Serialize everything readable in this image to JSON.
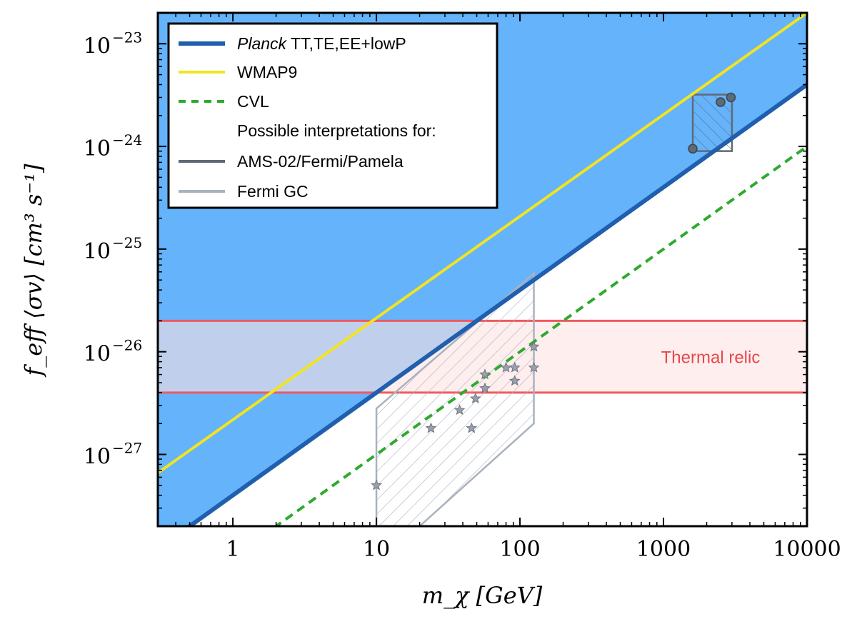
{
  "chart_data": {
    "type": "line",
    "xscale": "log",
    "yscale": "log",
    "xlim": [
      0.3,
      10000
    ],
    "ylim": [
      2e-28,
      2e-23
    ],
    "xlabel": "m_χ [GeV]",
    "ylabel": "f_eff ⟨σv⟩ [cm³ s⁻¹]",
    "x_ticks": [
      {
        "value": 1,
        "label": "1"
      },
      {
        "value": 10,
        "label": "10"
      },
      {
        "value": 100,
        "label": "100"
      },
      {
        "value": 1000,
        "label": "1000"
      },
      {
        "value": 10000,
        "label": "10000"
      }
    ],
    "y_ticks": [
      {
        "value": 1e-27,
        "base": "10",
        "exp": "−27"
      },
      {
        "value": 1e-26,
        "base": "10",
        "exp": "−26"
      },
      {
        "value": 1e-25,
        "base": "10",
        "exp": "−25"
      },
      {
        "value": 1e-24,
        "base": "10",
        "exp": "−24"
      },
      {
        "value": 1e-23,
        "base": "10",
        "exp": "−23"
      }
    ],
    "series": [
      {
        "name": "Planck TT,TE,EE+lowP",
        "name_italic": "Planck",
        "name_rest": " TT,TE,EE+lowP",
        "color": "#1f5fae",
        "style": "solid",
        "fill_above": "#64b3fb",
        "x": [
          0.3,
          10000
        ],
        "y": [
          1.2e-28,
          4e-24
        ]
      },
      {
        "name": "WMAP9",
        "color": "#f2e41f",
        "style": "solid",
        "x": [
          0.3,
          10000
        ],
        "y": [
          6.6e-28,
          2e-23
        ]
      },
      {
        "name": "CVL",
        "color": "#2eaa2e",
        "style": "dashed",
        "x": [
          0.3,
          10000
        ],
        "y": [
          3e-29,
          1e-24
        ]
      }
    ],
    "legend_note": "Possible interpretations for:",
    "regions": [
      {
        "name": "AMS-02/Fermi/Pamela",
        "color": "#5f6a78",
        "hatch": "diagonal-up",
        "polygon": [
          [
            1600,
            3.2e-24
          ],
          [
            2800,
            3.2e-24
          ],
          [
            3000,
            3e-24
          ],
          [
            3000,
            9e-25
          ],
          [
            1600,
            9e-25
          ]
        ],
        "points": [
          {
            "x": 1600,
            "y": 9.5e-25
          },
          {
            "x": 2500,
            "y": 2.7e-24
          },
          {
            "x": 2950,
            "y": 3e-24
          }
        ]
      },
      {
        "name": "Fermi GC",
        "color": "#a9b2be",
        "hatch": "diagonal-down",
        "polygon": [
          [
            10,
            2.8e-27
          ],
          [
            10,
            2e-28
          ],
          [
            20,
            2e-28
          ],
          [
            125,
            2e-27
          ],
          [
            125,
            5.8e-26
          ],
          [
            10,
            2.8e-27
          ]
        ],
        "points": [
          {
            "x": 10,
            "y": 5e-28
          },
          {
            "x": 24,
            "y": 1.8e-27
          },
          {
            "x": 38,
            "y": 2.7e-27
          },
          {
            "x": 46,
            "y": 1.8e-27
          },
          {
            "x": 49,
            "y": 3.5e-27
          },
          {
            "x": 57,
            "y": 4.4e-27
          },
          {
            "x": 57,
            "y": 6e-27
          },
          {
            "x": 80,
            "y": 7e-27
          },
          {
            "x": 92,
            "y": 7e-27
          },
          {
            "x": 92,
            "y": 5.2e-27
          },
          {
            "x": 125,
            "y": 7e-27
          },
          {
            "x": 125,
            "y": 1.12e-26
          }
        ]
      }
    ],
    "bands": [
      {
        "name": "Thermal relic",
        "y0": 4e-27,
        "y1": 2e-26,
        "fill": "#fde2e3",
        "edge": "#f05a5f"
      }
    ],
    "legend_position": "top-left"
  }
}
